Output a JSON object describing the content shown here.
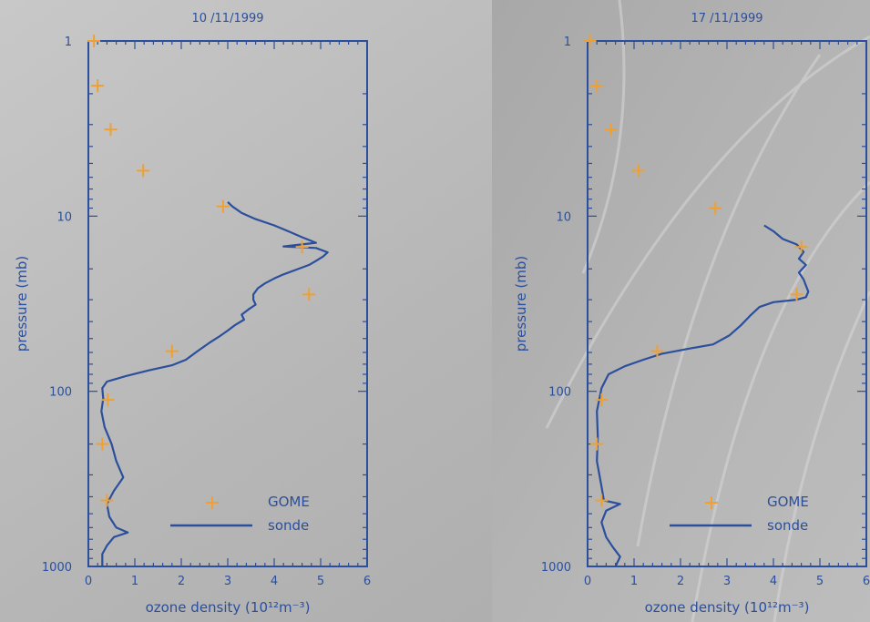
{
  "colors": {
    "axis": "#2b4f9c",
    "sonde": "#2b4f9c",
    "gome": "#f0a030",
    "background_left": "#b9b9b9",
    "background_right": "#b0b0b0"
  },
  "chart_data": [
    {
      "type": "line",
      "title": "10 /11/1999",
      "xlabel": "ozone density (10¹²m⁻³)",
      "ylabel": "pressure (mb)",
      "xlim": [
        0,
        6
      ],
      "ylim": [
        1000,
        1
      ],
      "y_scale": "log",
      "x_ticks": [
        0,
        1,
        2,
        3,
        4,
        5,
        6
      ],
      "y_ticks": [
        1,
        10,
        100,
        1000
      ],
      "legend": {
        "placement": "bottom-right",
        "entries": [
          "GOME",
          "sonde"
        ]
      },
      "series": [
        {
          "name": "sonde",
          "marker": "line",
          "points": [
            [
              3.0,
              8.3
            ],
            [
              3.1,
              8.8
            ],
            [
              3.3,
              9.6
            ],
            [
              3.6,
              10.4
            ],
            [
              4.0,
              11.3
            ],
            [
              4.3,
              12.2
            ],
            [
              4.6,
              13.2
            ],
            [
              4.9,
              14.2
            ],
            [
              4.2,
              14.9
            ],
            [
              4.9,
              15.2
            ],
            [
              5.15,
              16.1
            ],
            [
              5.05,
              17.0
            ],
            [
              4.9,
              18.0
            ],
            [
              4.75,
              19.0
            ],
            [
              4.5,
              20.1
            ],
            [
              4.2,
              21.5
            ],
            [
              4.0,
              22.7
            ],
            [
              3.8,
              24.2
            ],
            [
              3.65,
              25.8
            ],
            [
              3.55,
              28.0
            ],
            [
              3.55,
              30.0
            ],
            [
              3.6,
              32.0
            ],
            [
              3.45,
              34.0
            ],
            [
              3.3,
              36.5
            ],
            [
              3.35,
              39.0
            ],
            [
              3.15,
              42.0
            ],
            [
              3.0,
              45.0
            ],
            [
              2.8,
              49.0
            ],
            [
              2.6,
              53.0
            ],
            [
              2.35,
              59.0
            ],
            [
              2.1,
              66.0
            ],
            [
              1.8,
              71.0
            ],
            [
              1.3,
              76.0
            ],
            [
              0.8,
              82.0
            ],
            [
              0.4,
              88.0
            ],
            [
              0.3,
              96.0
            ],
            [
              0.32,
              110.0
            ],
            [
              0.28,
              130.0
            ],
            [
              0.35,
              160.0
            ],
            [
              0.5,
              200.0
            ],
            [
              0.6,
              250.0
            ],
            [
              0.75,
              310.0
            ],
            [
              0.55,
              370.0
            ],
            [
              0.4,
              440.0
            ],
            [
              0.45,
              520.0
            ],
            [
              0.6,
              600.0
            ],
            [
              0.85,
              640.0
            ],
            [
              0.55,
              680.0
            ],
            [
              0.4,
              760.0
            ],
            [
              0.3,
              850.0
            ],
            [
              0.3,
              1000.0
            ]
          ]
        },
        {
          "name": "GOME",
          "marker": "cross",
          "points": [
            [
              0.12,
              1.0
            ],
            [
              0.2,
              1.8
            ],
            [
              0.48,
              3.2
            ],
            [
              1.18,
              5.5
            ],
            [
              2.9,
              8.8
            ],
            [
              4.6,
              15.0
            ],
            [
              4.75,
              28.0
            ],
            [
              1.8,
              59.0
            ],
            [
              0.42,
              112.0
            ],
            [
              0.3,
              200.0
            ],
            [
              0.4,
              420.0
            ]
          ]
        }
      ]
    },
    {
      "type": "line",
      "title": "17 /11/1999",
      "xlabel": "ozone density (10¹²m⁻³)",
      "ylabel": "pressure (mb)",
      "xlim": [
        0,
        6
      ],
      "ylim": [
        1000,
        1
      ],
      "y_scale": "log",
      "x_ticks": [
        0,
        1,
        2,
        3,
        4,
        5,
        6
      ],
      "y_ticks": [
        1,
        10,
        100,
        1000
      ],
      "legend": {
        "placement": "bottom-right",
        "entries": [
          "GOME",
          "sonde"
        ]
      },
      "series": [
        {
          "name": "sonde",
          "marker": "line",
          "points": [
            [
              3.8,
              11.3
            ],
            [
              4.0,
              12.2
            ],
            [
              4.2,
              13.5
            ],
            [
              4.5,
              14.5
            ],
            [
              4.65,
              16.0
            ],
            [
              4.55,
              17.5
            ],
            [
              4.7,
              19.0
            ],
            [
              4.55,
              21.0
            ],
            [
              4.65,
              23.0
            ],
            [
              4.75,
              27.0
            ],
            [
              4.7,
              29.0
            ],
            [
              4.5,
              30.0
            ],
            [
              4.0,
              31.0
            ],
            [
              3.7,
              33.0
            ],
            [
              3.5,
              37.0
            ],
            [
              3.3,
              42.0
            ],
            [
              3.05,
              48.0
            ],
            [
              2.7,
              54.0
            ],
            [
              2.2,
              57.0
            ],
            [
              1.6,
              61.0
            ],
            [
              1.2,
              66.0
            ],
            [
              0.8,
              72.0
            ],
            [
              0.45,
              80.0
            ],
            [
              0.3,
              96.0
            ],
            [
              0.2,
              130.0
            ],
            [
              0.22,
              180.0
            ],
            [
              0.2,
              250.0
            ],
            [
              0.3,
              350.0
            ],
            [
              0.35,
              420.0
            ],
            [
              0.7,
              440.0
            ],
            [
              0.4,
              480.0
            ],
            [
              0.3,
              560.0
            ],
            [
              0.4,
              680.0
            ],
            [
              0.55,
              780.0
            ],
            [
              0.7,
              880.0
            ],
            [
              0.6,
              1000.0
            ]
          ]
        },
        {
          "name": "GOME",
          "marker": "cross",
          "points": [
            [
              0.05,
              1.0
            ],
            [
              0.2,
              1.8
            ],
            [
              0.5,
              3.2
            ],
            [
              1.1,
              5.5
            ],
            [
              2.75,
              9.0
            ],
            [
              4.6,
              15.0
            ],
            [
              4.5,
              28.0
            ],
            [
              1.5,
              59.0
            ],
            [
              0.3,
              112.0
            ],
            [
              0.2,
              200.0
            ],
            [
              0.3,
              420.0
            ]
          ]
        }
      ]
    }
  ]
}
